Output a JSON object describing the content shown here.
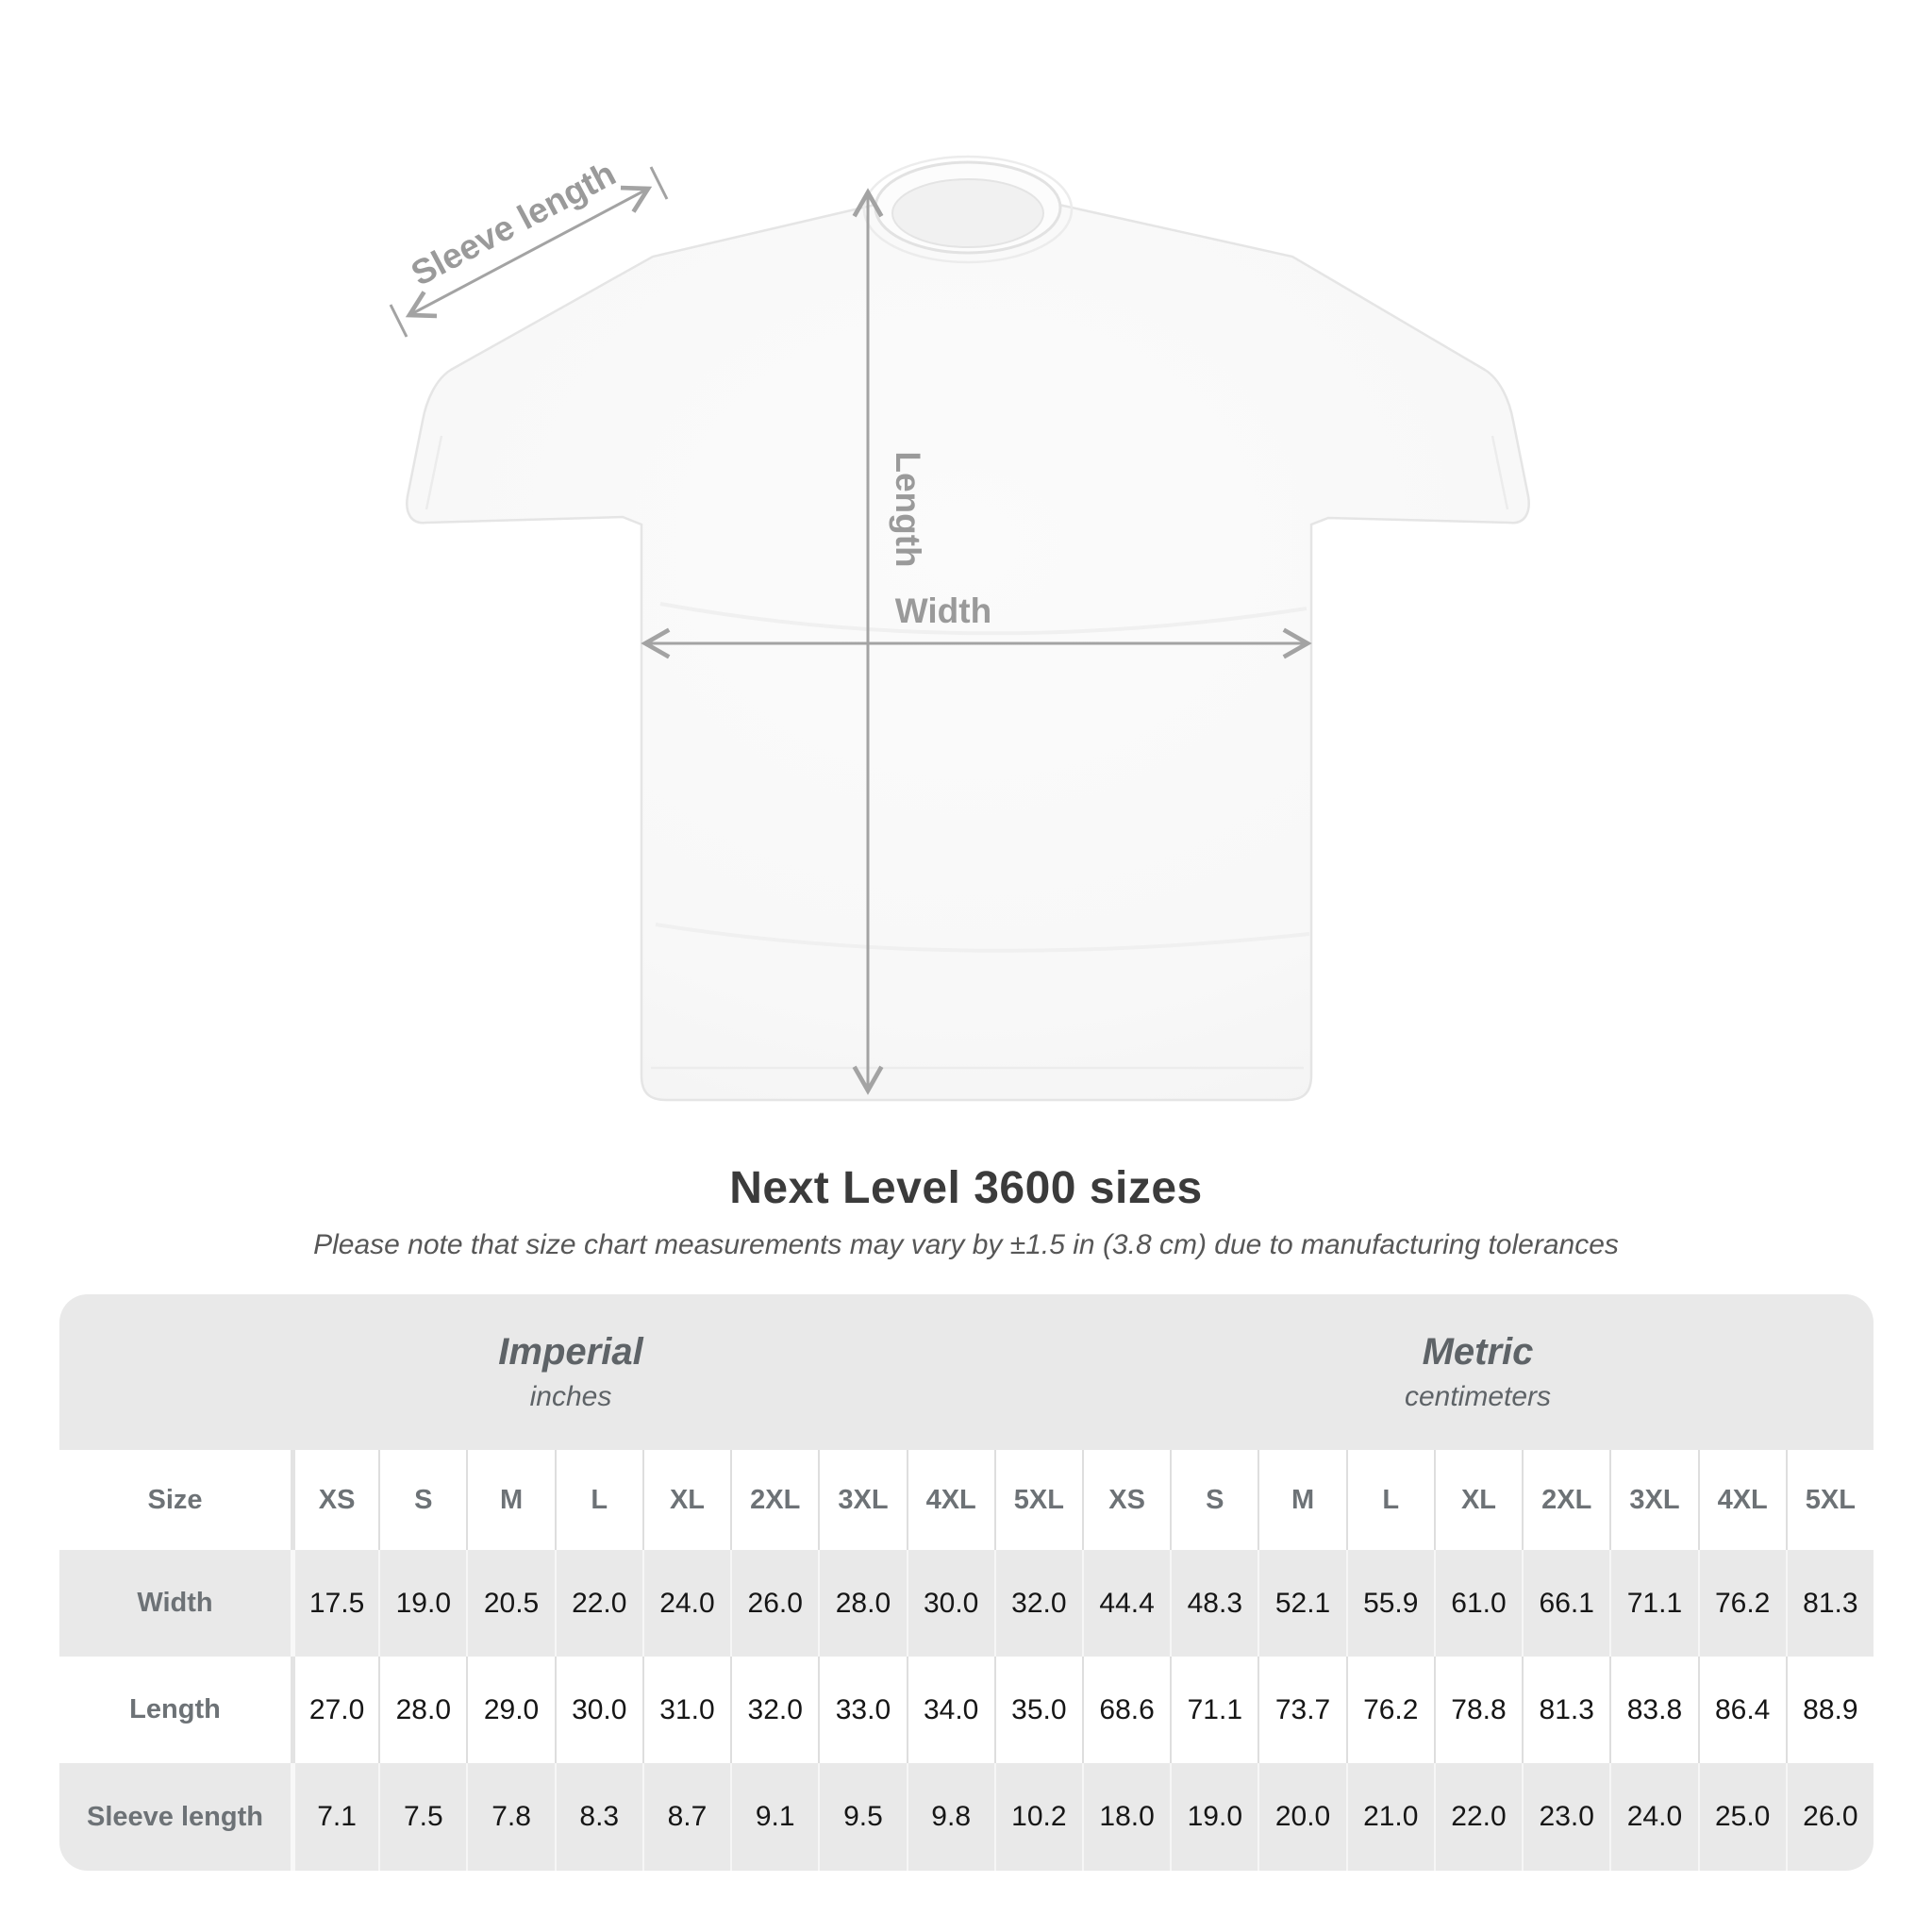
{
  "title": "Next Level 3600 sizes",
  "subtitle": "Please note that size chart measurements may vary by ±1.5 in (3.8 cm) due to manufacturing tolerances",
  "diagram": {
    "sleeve_label": "Sleeve length",
    "length_label": "Length",
    "width_label": "Width"
  },
  "table": {
    "size_header": "Size",
    "groups": [
      {
        "label": "Imperial",
        "unit": "inches"
      },
      {
        "label": "Metric",
        "unit": "centimeters"
      }
    ]
  },
  "chart_data": {
    "type": "table",
    "title": "Next Level 3600 sizes",
    "sizes": [
      "XS",
      "S",
      "M",
      "L",
      "XL",
      "2XL",
      "3XL",
      "4XL",
      "5XL"
    ],
    "rows": [
      {
        "label": "Width",
        "imperial": [
          17.5,
          19.0,
          20.5,
          22.0,
          24.0,
          26.0,
          28.0,
          30.0,
          32.0
        ],
        "metric": [
          44.4,
          48.3,
          52.1,
          55.9,
          61.0,
          66.1,
          71.1,
          76.2,
          81.3
        ]
      },
      {
        "label": "Length",
        "imperial": [
          27.0,
          28.0,
          29.0,
          30.0,
          31.0,
          32.0,
          33.0,
          34.0,
          35.0
        ],
        "metric": [
          68.6,
          71.1,
          73.7,
          76.2,
          78.8,
          81.3,
          83.8,
          86.4,
          88.9
        ]
      },
      {
        "label": "Sleeve length",
        "imperial": [
          7.1,
          7.5,
          7.8,
          8.3,
          8.7,
          9.1,
          9.5,
          9.8,
          10.2
        ],
        "metric": [
          18.0,
          19.0,
          20.0,
          21.0,
          22.0,
          23.0,
          24.0,
          25.0,
          26.0
        ]
      }
    ]
  },
  "colors": {
    "arrow_gray": "#a3a3a3",
    "diagram_label_gray": "#9a9a9a",
    "table_band_gray": "#e9e9e9",
    "header_text_gray": "#6d7276",
    "value_text": "#161616",
    "title_text": "#3b3b3b"
  }
}
